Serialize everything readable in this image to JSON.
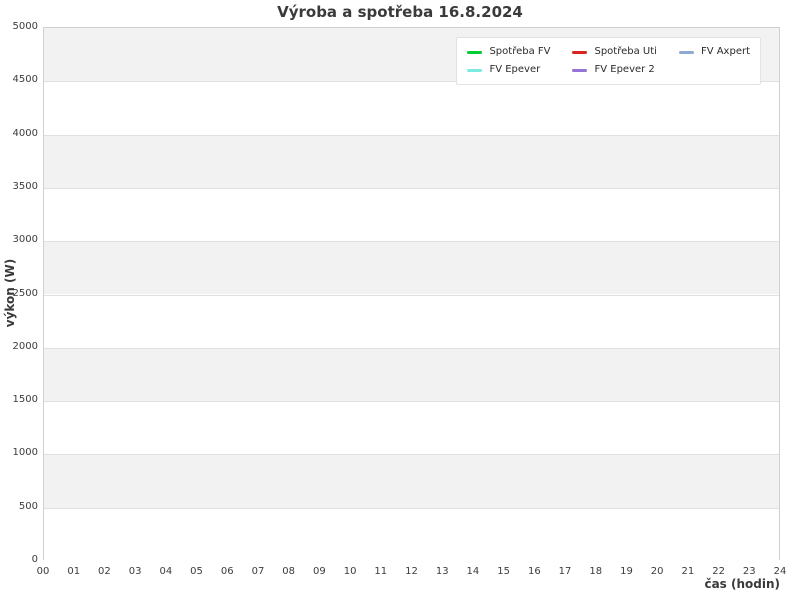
{
  "chart_data": {
    "type": "line",
    "title": "Výroba a spotřeba 16.8.2024",
    "xlabel": "čas (hodin)",
    "ylabel": "výkon (W)",
    "xlim": [
      0,
      24
    ],
    "ylim": [
      0,
      5000
    ],
    "xticks": [
      "00",
      "01",
      "02",
      "03",
      "04",
      "05",
      "06",
      "07",
      "08",
      "09",
      "10",
      "11",
      "12",
      "13",
      "14",
      "15",
      "16",
      "17",
      "18",
      "19",
      "20",
      "21",
      "22",
      "23",
      "24"
    ],
    "yticks": [
      0,
      500,
      1000,
      1500,
      2000,
      2500,
      3000,
      3500,
      4000,
      4500,
      5000
    ],
    "grid": "horizontal gridlines with alternating gray/white bands every 500",
    "legend_position": "top-right inside plot",
    "legend_columns": 3,
    "series": [
      {
        "name": "Spotřeba FV",
        "color": "#00cc33",
        "values": []
      },
      {
        "name": "FV Epever",
        "color": "#7de9df",
        "values": []
      },
      {
        "name": "Spotřeba Uti",
        "color": "#dd2222",
        "values": []
      },
      {
        "name": "FV Epever 2",
        "color": "#9673d6",
        "values": []
      },
      {
        "name": "FV Axpert",
        "color": "#8da9d4",
        "values": []
      }
    ]
  },
  "colors": {
    "band_gray": "#f2f2f2",
    "gridline": "#e0e0e0",
    "plot_border": "#d0d0d0",
    "text": "#3a3a3a",
    "background": "#ffffff"
  }
}
